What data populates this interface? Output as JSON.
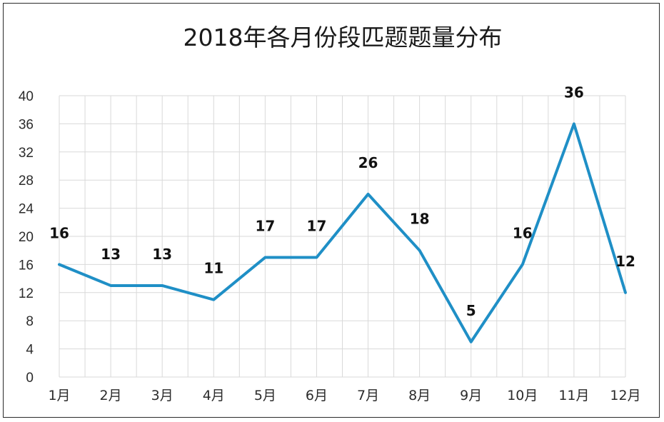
{
  "chart_data": {
    "type": "line",
    "title": "2018年各月份段匹题题量分布",
    "categories": [
      "1月",
      "2月",
      "3月",
      "4月",
      "5月",
      "6月",
      "7月",
      "8月",
      "9月",
      "10月",
      "11月",
      "12月"
    ],
    "values": [
      16,
      13,
      13,
      11,
      17,
      17,
      26,
      18,
      5,
      16,
      36,
      12
    ],
    "ylim": [
      0,
      40
    ],
    "yticks": [
      0,
      4,
      8,
      12,
      16,
      20,
      24,
      28,
      32,
      36,
      40
    ],
    "grid": true,
    "line_color": "#1f8fc6"
  }
}
